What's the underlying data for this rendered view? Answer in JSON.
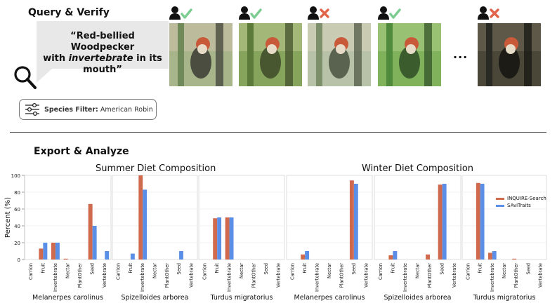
{
  "query_section": {
    "title": "Query & Verify",
    "query_line1": "“Red-bellied Woodpecker",
    "query_line2_pre": "with ",
    "query_line2_em": "invertebrate",
    "query_line2_post": " in its",
    "query_line3": "mouth”",
    "filter_label": "Species Filter:",
    "filter_value": "American Robin",
    "ellipsis": "...",
    "results": [
      {
        "verdict": "check"
      },
      {
        "verdict": "check"
      },
      {
        "verdict": "cross"
      },
      {
        "verdict": "check"
      },
      {
        "verdict": "cross"
      }
    ]
  },
  "analyze_section": {
    "title": "Export & Analyze"
  },
  "colors": {
    "inquire": "#cf6a4f",
    "savitraits": "#5b8ee6",
    "check": "#7ccb91",
    "cross": "#e1654b"
  },
  "chart_data": [
    {
      "type": "bar",
      "title": "Summer Diet Composition",
      "ylabel": "Percent (%)",
      "ylim": [
        0,
        100
      ],
      "yticks": [
        0,
        20,
        40,
        60,
        80,
        100
      ],
      "categories": [
        "Carrion",
        "Fruit",
        "Invertebrate",
        "Nectar",
        "PlantOther",
        "Seed",
        "Vertebrate"
      ],
      "legend": [
        "INQUIRE-Search",
        "SAviTraits"
      ],
      "panels": [
        {
          "species": "Melanerpes carolinus",
          "series": [
            {
              "name": "INQUIRE-Search",
              "values": [
                0,
                13,
                20,
                1,
                0,
                66,
                0
              ]
            },
            {
              "name": "SAviTraits",
              "values": [
                0,
                20,
                20,
                0,
                0,
                40,
                10
              ]
            }
          ]
        },
        {
          "species": "Spizelloides arborea",
          "series": [
            {
              "name": "INQUIRE-Search",
              "values": [
                0,
                0,
                100,
                0,
                0,
                0,
                0
              ]
            },
            {
              "name": "SAviTraits",
              "values": [
                0,
                7,
                83,
                0,
                0,
                10,
                0
              ]
            }
          ]
        },
        {
          "species": "Turdus migratorius",
          "series": [
            {
              "name": "INQUIRE-Search",
              "values": [
                0,
                49,
                50,
                0,
                0,
                0,
                0
              ]
            },
            {
              "name": "SAviTraits",
              "values": [
                0,
                50,
                50,
                0,
                0,
                0,
                0
              ]
            }
          ]
        }
      ]
    },
    {
      "type": "bar",
      "title": "Winter Diet Composition",
      "ylim": [
        0,
        100
      ],
      "categories": [
        "Carrion",
        "Fruit",
        "Invertebrate",
        "Nectar",
        "PlantOther",
        "Seed",
        "Vertebrate"
      ],
      "legend": [
        "INQUIRE-Search",
        "SAviTraits"
      ],
      "legend_position": "top-right",
      "panels": [
        {
          "species": "Melanerpes carolinus",
          "series": [
            {
              "name": "INQUIRE-Search",
              "values": [
                0,
                6,
                0,
                0,
                0,
                94,
                0
              ]
            },
            {
              "name": "SAviTraits",
              "values": [
                0,
                10,
                0,
                0,
                0,
                90,
                0
              ]
            }
          ]
        },
        {
          "species": "Spizelloides arborea",
          "series": [
            {
              "name": "INQUIRE-Search",
              "values": [
                0,
                5,
                0,
                0,
                6,
                89,
                0
              ]
            },
            {
              "name": "SAviTraits",
              "values": [
                0,
                10,
                0,
                0,
                0,
                90,
                0
              ]
            }
          ]
        },
        {
          "species": "Turdus migratorius",
          "series": [
            {
              "name": "INQUIRE-Search",
              "values": [
                0,
                91,
                8,
                0,
                1,
                0,
                0
              ]
            },
            {
              "name": "SAviTraits",
              "values": [
                0,
                90,
                10,
                0,
                0,
                0,
                0
              ]
            }
          ]
        }
      ]
    }
  ]
}
